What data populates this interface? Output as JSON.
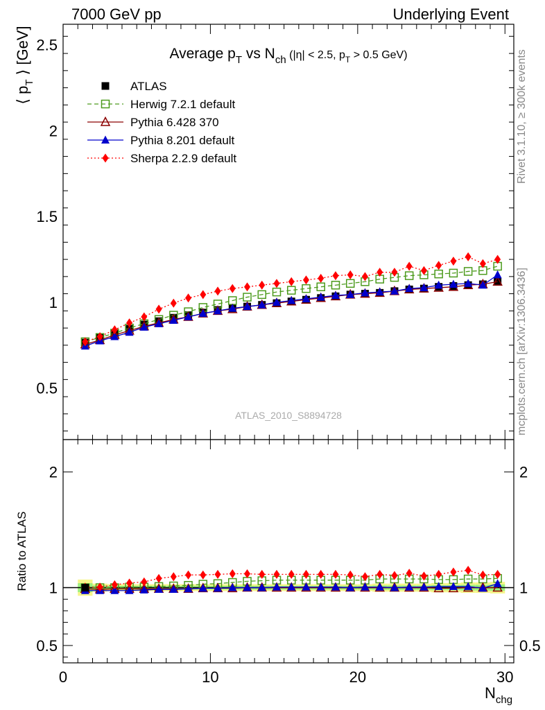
{
  "header": {
    "left": "7000 GeV pp",
    "right": "Underlying Event"
  },
  "side_text": {
    "rivet": "Rivet 3.1.10, ≥ 300k events",
    "mcplots": "mcplots.cern.ch [arXiv:1306.3436]"
  },
  "watermark": "ATLAS_2010_S8894728",
  "chart_data": [
    {
      "type": "line",
      "panel": "main",
      "title": "Average pT vs Nch (|η| < 2.5, pT > 0.5 GeV)",
      "ylabel": "⟨ pT ⟩ [GeV]",
      "ylim": [
        0.2,
        2.62
      ],
      "yticks": [
        0.5,
        1,
        1.5,
        2,
        2.5
      ],
      "xlim": [
        0,
        30.6
      ],
      "legend_position": "top-left",
      "x": [
        1.5,
        2.5,
        3.5,
        4.5,
        5.5,
        6.5,
        7.5,
        8.5,
        9.5,
        10.5,
        11.5,
        12.5,
        13.5,
        14.5,
        15.5,
        16.5,
        17.5,
        18.5,
        19.5,
        20.5,
        21.5,
        22.5,
        23.5,
        24.5,
        25.5,
        26.5,
        27.5,
        28.5,
        29.5
      ],
      "series": [
        {
          "name": "ATLAS",
          "color": "#000000",
          "marker": "square",
          "line": "none",
          "values": [
            0.765,
            0.795,
            0.82,
            0.845,
            0.87,
            0.89,
            0.91,
            0.925,
            0.94,
            0.955,
            0.965,
            0.975,
            0.985,
            0.995,
            1.005,
            1.015,
            1.025,
            1.035,
            1.045,
            1.05,
            1.055,
            1.065,
            1.075,
            1.08,
            1.09,
            1.095,
            1.1,
            1.105,
            1.12
          ]
        },
        {
          "name": "Herwig 7.2.1 default",
          "color": "#4c9a1c",
          "marker": "open-square",
          "line": "dashed",
          "values": [
            0.77,
            0.795,
            0.82,
            0.85,
            0.875,
            0.9,
            0.925,
            0.945,
            0.97,
            0.99,
            1.01,
            1.03,
            1.045,
            1.06,
            1.07,
            1.08,
            1.09,
            1.1,
            1.11,
            1.12,
            1.135,
            1.145,
            1.155,
            1.16,
            1.165,
            1.17,
            1.18,
            1.185,
            1.21
          ]
        },
        {
          "name": "Pythia 6.428 370",
          "color": "#8b0000",
          "marker": "open-triangle",
          "line": "solid",
          "values": [
            0.755,
            0.78,
            0.81,
            0.835,
            0.86,
            0.88,
            0.9,
            0.915,
            0.935,
            0.95,
            0.96,
            0.975,
            0.985,
            0.995,
            1.005,
            1.015,
            1.025,
            1.035,
            1.045,
            1.05,
            1.055,
            1.065,
            1.075,
            1.08,
            1.085,
            1.09,
            1.1,
            1.105,
            1.12
          ]
        },
        {
          "name": "Pythia 8.201 default",
          "color": "#0000cc",
          "marker": "triangle",
          "line": "solid",
          "values": [
            0.745,
            0.775,
            0.8,
            0.825,
            0.855,
            0.875,
            0.895,
            0.915,
            0.935,
            0.95,
            0.965,
            0.975,
            0.985,
            1.0,
            1.01,
            1.02,
            1.03,
            1.04,
            1.045,
            1.055,
            1.06,
            1.065,
            1.08,
            1.085,
            1.1,
            1.105,
            1.11,
            1.1,
            1.16
          ]
        },
        {
          "name": "Sherpa 2.2.9 default",
          "color": "#ff0000",
          "marker": "diamond",
          "line": "dotted",
          "values": [
            0.77,
            0.8,
            0.84,
            0.88,
            0.915,
            0.96,
            0.995,
            1.025,
            1.045,
            1.065,
            1.08,
            1.09,
            1.1,
            1.11,
            1.12,
            1.13,
            1.14,
            1.155,
            1.16,
            1.15,
            1.175,
            1.175,
            1.21,
            1.185,
            1.215,
            1.24,
            1.265,
            1.225,
            1.25
          ]
        }
      ]
    },
    {
      "type": "line",
      "panel": "ratio",
      "ylabel": "Ratio to ATLAS",
      "ylim": [
        0.35,
        2.28
      ],
      "yticks": [
        0.5,
        1,
        2
      ],
      "xlabel": "Nchg",
      "xlim": [
        0,
        30.6
      ],
      "xticks": [
        0,
        10,
        20,
        30
      ],
      "x": [
        1.5,
        2.5,
        3.5,
        4.5,
        5.5,
        6.5,
        7.5,
        8.5,
        9.5,
        10.5,
        11.5,
        12.5,
        13.5,
        14.5,
        15.5,
        16.5,
        17.5,
        18.5,
        19.5,
        20.5,
        21.5,
        22.5,
        23.5,
        24.5,
        25.5,
        26.5,
        27.5,
        28.5,
        29.5
      ],
      "band_error": [
        0.07,
        0.035,
        0.03,
        0.03,
        0.03,
        0.03,
        0.03,
        0.03,
        0.03,
        0.03,
        0.03,
        0.03,
        0.03,
        0.03,
        0.03,
        0.03,
        0.03,
        0.03,
        0.03,
        0.03,
        0.035,
        0.035,
        0.035,
        0.035,
        0.04,
        0.04,
        0.045,
        0.045,
        0.05
      ],
      "series": [
        {
          "name": "Herwig 7.2.1 default",
          "values": [
            1.0,
            1.0,
            1.0,
            1.005,
            1.005,
            1.01,
            1.015,
            1.02,
            1.03,
            1.035,
            1.045,
            1.055,
            1.06,
            1.065,
            1.065,
            1.065,
            1.065,
            1.065,
            1.065,
            1.065,
            1.075,
            1.075,
            1.075,
            1.075,
            1.07,
            1.07,
            1.075,
            1.075,
            1.08
          ]
        },
        {
          "name": "Pythia 6.428 370",
          "values": [
            0.99,
            0.985,
            0.99,
            0.99,
            0.99,
            0.99,
            0.99,
            0.99,
            0.995,
            0.995,
            0.995,
            1.0,
            1.0,
            1.0,
            1.0,
            1.0,
            1.0,
            1.0,
            1.0,
            1.0,
            1.0,
            1.0,
            1.0,
            1.0,
            0.995,
            0.995,
            1.0,
            1.0,
            1.0
          ]
        },
        {
          "name": "Pythia 8.201 default",
          "values": [
            0.975,
            0.975,
            0.975,
            0.975,
            0.98,
            0.985,
            0.985,
            0.99,
            0.995,
            0.995,
            1.0,
            1.0,
            1.0,
            1.005,
            1.005,
            1.005,
            1.005,
            1.005,
            1.0,
            1.005,
            1.005,
            1.0,
            1.005,
            1.005,
            1.01,
            1.01,
            1.01,
            0.995,
            1.035
          ]
        },
        {
          "name": "Sherpa 2.2.9 default",
          "values": [
            1.005,
            1.005,
            1.025,
            1.04,
            1.05,
            1.08,
            1.095,
            1.11,
            1.11,
            1.115,
            1.12,
            1.12,
            1.115,
            1.115,
            1.115,
            1.115,
            1.115,
            1.115,
            1.11,
            1.095,
            1.115,
            1.105,
            1.125,
            1.1,
            1.115,
            1.135,
            1.15,
            1.11,
            1.115
          ]
        }
      ]
    }
  ]
}
